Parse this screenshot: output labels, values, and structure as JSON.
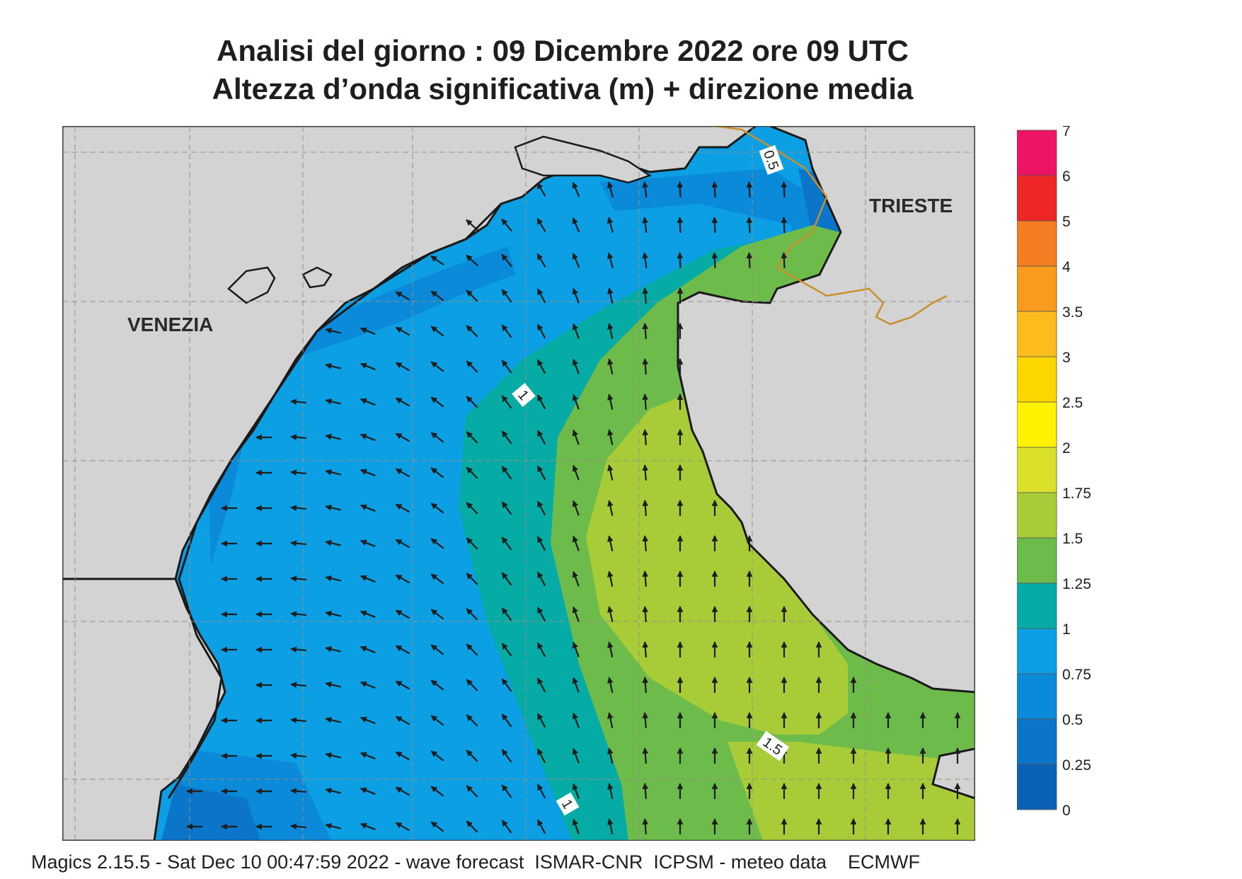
{
  "title": {
    "line1": "Analisi del giorno :  09 Dicembre  2022   ore 09 UTC",
    "line2": "Altezza d’onda significativa (m) + direzione media"
  },
  "map": {
    "cities": [
      {
        "name": "VENEZIA"
      },
      {
        "name": "TRIESTE"
      }
    ],
    "contour_labels": [
      "0.5",
      "1",
      "1",
      "1.5"
    ],
    "colors": {
      "land": "#d3d3d3",
      "coast": "#1a1a1a",
      "border": "#c8902c",
      "grid": "#9a8f82",
      "arrow": "#1e1e1e"
    }
  },
  "legend": {
    "levels": [
      "0",
      "0.25",
      "0.5",
      "0.75",
      "1",
      "1.25",
      "1.5",
      "1.75",
      "2",
      "2.5",
      "3",
      "3.5",
      "4",
      "5",
      "6",
      "7"
    ],
    "colors": [
      "#0a61b8",
      "#0a75c9",
      "#0a8ad8",
      "#0c9fe4",
      "#05aba4",
      "#6cbb4b",
      "#a8cc38",
      "#dbe128",
      "#fff200",
      "#ffd700",
      "#fdbb1c",
      "#f99b1c",
      "#f47c22",
      "#ee2626",
      "#ee1465"
    ]
  },
  "footer": {
    "text": "Magics 2.15.5 - Sat Dec 10 00:47:59 2022 - wave forecast  ISMAR-CNR  ICPSM - meteo data    ECMWF"
  }
}
